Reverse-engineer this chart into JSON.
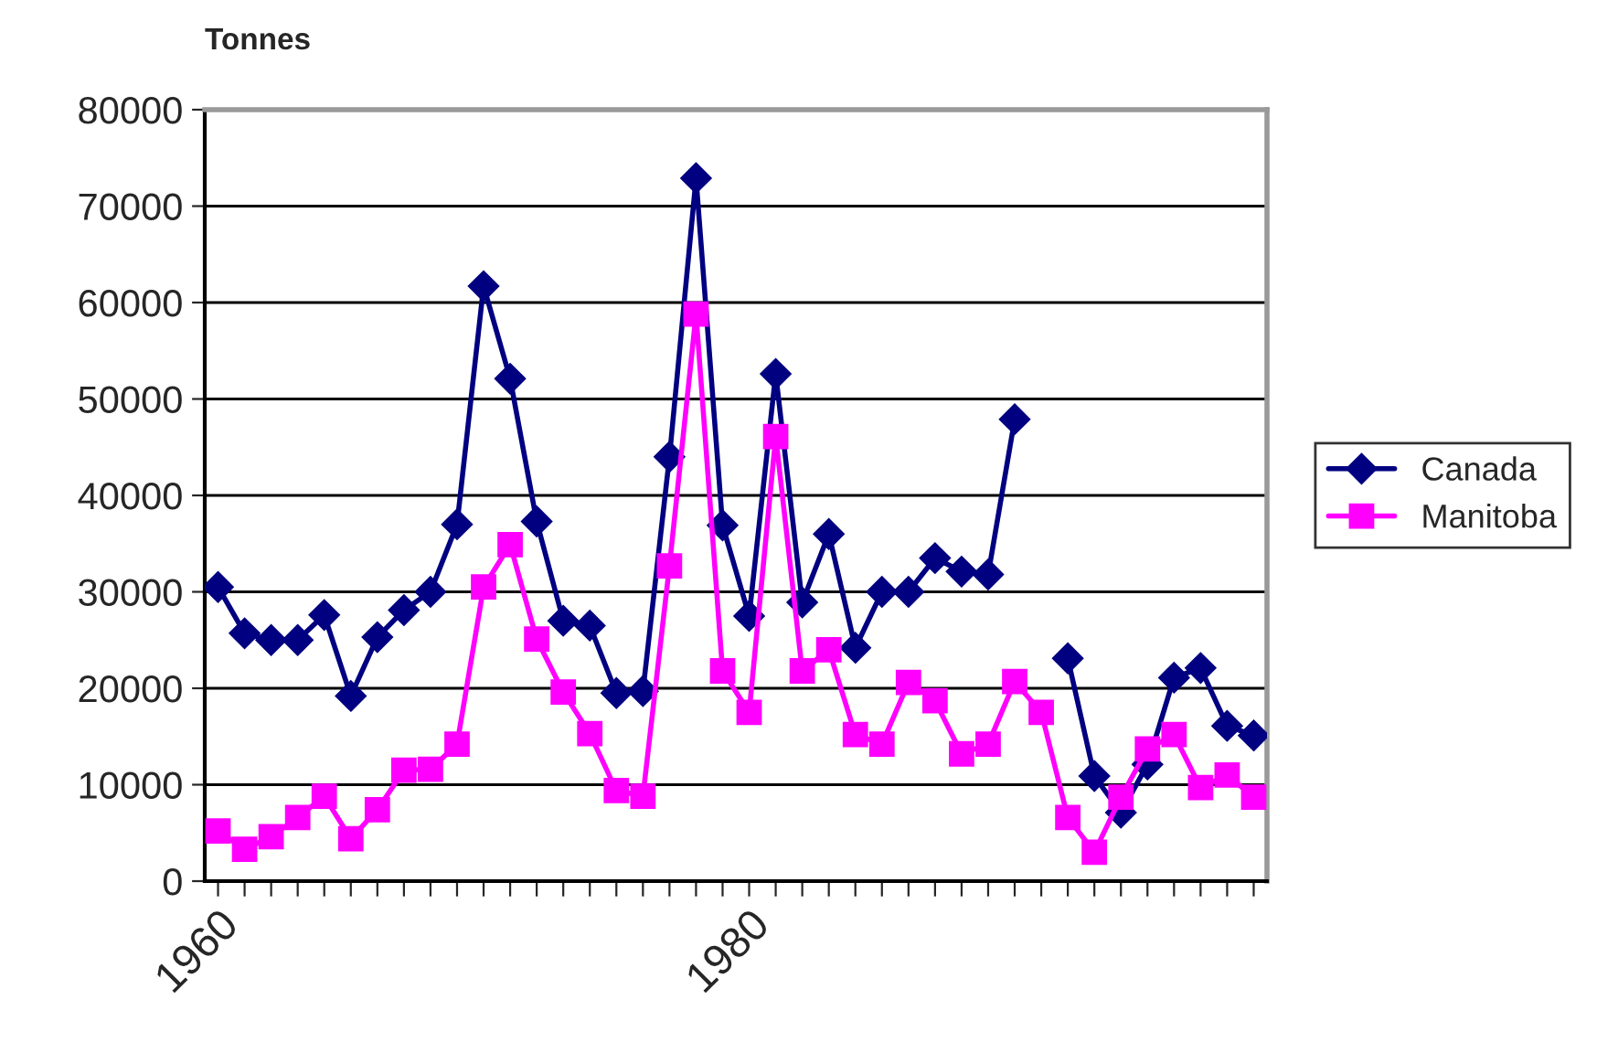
{
  "chart_data": {
    "type": "line",
    "ylabel": "Tonnes",
    "categories": [
      "1960",
      null,
      null,
      null,
      null,
      null,
      null,
      null,
      null,
      null,
      null,
      null,
      null,
      null,
      null,
      null,
      null,
      null,
      null,
      null,
      "1980",
      null,
      null,
      null,
      null,
      null,
      null,
      null,
      null,
      null,
      null,
      null,
      null,
      null,
      null,
      null,
      null,
      null,
      null,
      null
    ],
    "series": [
      {
        "name": "Canada",
        "color": "#000080",
        "marker": "diamond",
        "values": [
          30500,
          25700,
          25000,
          25000,
          27600,
          19200,
          25300,
          28100,
          30000,
          37000,
          61700,
          52100,
          37300,
          27000,
          26500,
          19500,
          19700,
          44000,
          72900,
          36900,
          27500,
          52600,
          28900,
          36000,
          24200,
          30000,
          30000,
          33500,
          32100,
          31800,
          47900,
          null,
          23100,
          10900,
          7100,
          12100,
          21100,
          22100,
          16100,
          15100
        ]
      },
      {
        "name": "Manitoba",
        "color": "#ff00ff",
        "marker": "square",
        "values": [
          5200,
          3300,
          4600,
          6600,
          8800,
          4400,
          7400,
          11500,
          11600,
          14200,
          30500,
          34900,
          25100,
          19600,
          15300,
          9400,
          8800,
          32700,
          58800,
          21800,
          17500,
          46100,
          21800,
          24000,
          15200,
          14200,
          20600,
          18700,
          13200,
          14200,
          20700,
          17500,
          6600,
          3000,
          8700,
          13700,
          15200,
          9700,
          11000,
          8700
        ]
      }
    ],
    "ylim": [
      0,
      80000
    ],
    "yticks": [
      0,
      10000,
      20000,
      30000,
      40000,
      50000,
      60000,
      70000,
      80000
    ],
    "grid": "y",
    "legend": "right",
    "line_style": "solid"
  }
}
